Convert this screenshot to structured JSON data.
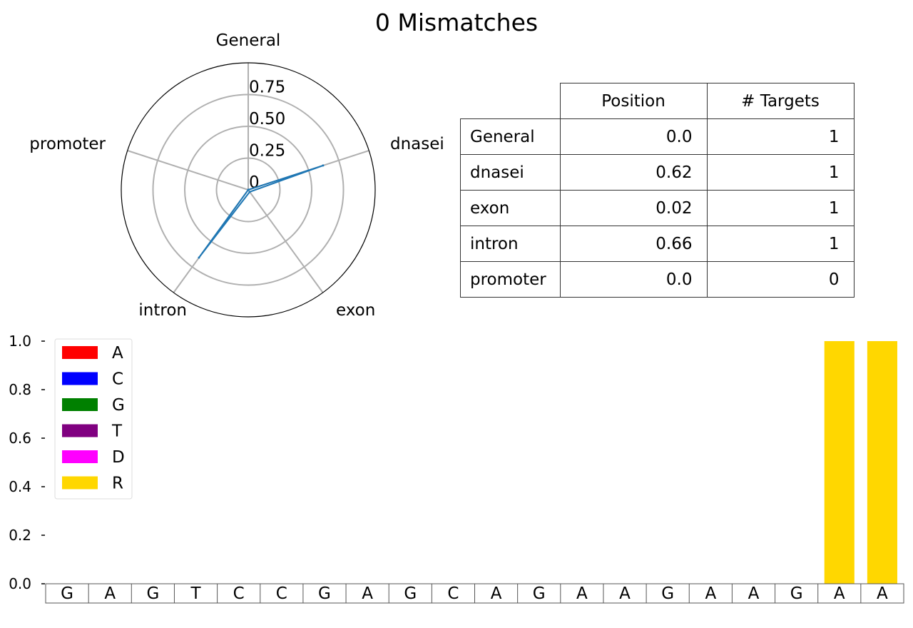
{
  "title": "0 Mismatches",
  "chart_data": [
    {
      "type": "radar",
      "categories": [
        "General",
        "dnasei",
        "exon",
        "intron",
        "promoter"
      ],
      "values": [
        0.0,
        0.62,
        0.02,
        0.66,
        0.0
      ],
      "rticks": [
        0,
        0.25,
        0.5,
        0.75
      ],
      "rtick_labels": [
        "0",
        "0.25",
        "0.50",
        "0.75"
      ],
      "rlim": [
        0,
        1.0
      ],
      "color": "#1f77b4"
    },
    {
      "type": "table",
      "columns": [
        "Position",
        "# Targets"
      ],
      "rows": [
        {
          "label": "General",
          "position": "0.0",
          "targets": "1"
        },
        {
          "label": "dnasei",
          "position": "0.62",
          "targets": "1"
        },
        {
          "label": "exon",
          "position": "0.02",
          "targets": "1"
        },
        {
          "label": "intron",
          "position": "0.66",
          "targets": "1"
        },
        {
          "label": "promoter",
          "position": "0.0",
          "targets": "0"
        }
      ]
    },
    {
      "type": "bar",
      "categories": [
        "G",
        "A",
        "G",
        "T",
        "C",
        "C",
        "G",
        "A",
        "G",
        "C",
        "A",
        "G",
        "A",
        "A",
        "G",
        "A",
        "A",
        "G",
        "A",
        "A"
      ],
      "series": [
        {
          "name": "A",
          "color": "#ff0000",
          "values": [
            0,
            0,
            0,
            0,
            0,
            0,
            0,
            0,
            0,
            0,
            0,
            0,
            0,
            0,
            0,
            0,
            0,
            0,
            0,
            0
          ]
        },
        {
          "name": "C",
          "color": "#0000ff",
          "values": [
            0,
            0,
            0,
            0,
            0,
            0,
            0,
            0,
            0,
            0,
            0,
            0,
            0,
            0,
            0,
            0,
            0,
            0,
            0,
            0
          ]
        },
        {
          "name": "G",
          "color": "#008000",
          "values": [
            0,
            0,
            0,
            0,
            0,
            0,
            0,
            0,
            0,
            0,
            0,
            0,
            0,
            0,
            0,
            0,
            0,
            0,
            0,
            0
          ]
        },
        {
          "name": "T",
          "color": "#800080",
          "values": [
            0,
            0,
            0,
            0,
            0,
            0,
            0,
            0,
            0,
            0,
            0,
            0,
            0,
            0,
            0,
            0,
            0,
            0,
            0,
            0
          ]
        },
        {
          "name": "D",
          "color": "#ff00ff",
          "values": [
            0,
            0,
            0,
            0,
            0,
            0,
            0,
            0,
            0,
            0,
            0,
            0,
            0,
            0,
            0,
            0,
            0,
            0,
            0,
            0
          ]
        },
        {
          "name": "R",
          "color": "#ffd700",
          "values": [
            0,
            0,
            0,
            0,
            0,
            0,
            0,
            0,
            0,
            0,
            0,
            0,
            0,
            0,
            0,
            0,
            0,
            0,
            1.0,
            1.0
          ]
        }
      ],
      "yticks": [
        "0.0",
        "0.2",
        "0.4",
        "0.6",
        "0.8",
        "1.0"
      ],
      "ylim": [
        0,
        1.0
      ],
      "legend": "top-left"
    }
  ]
}
